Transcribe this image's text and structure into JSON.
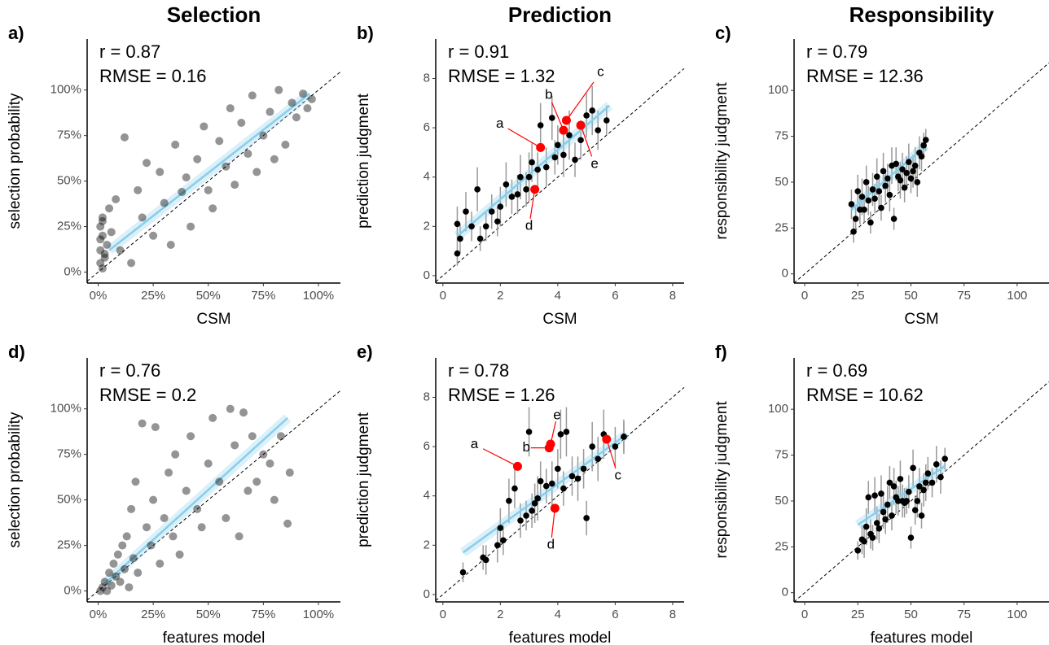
{
  "chart_data": [
    {
      "type": "scatter",
      "title": "Selection",
      "panel_label": "a)",
      "annotations": [
        "r = 0.87",
        "RMSE = 0.16"
      ],
      "xlabel": "CSM",
      "ylabel": "selection probability",
      "xlim": [
        -0.05,
        1.1
      ],
      "ylim": [
        -0.06,
        1.28
      ],
      "xticks": [
        {
          "value": 0,
          "label": "0%"
        },
        {
          "value": 0.25,
          "label": "25%"
        },
        {
          "value": 0.5,
          "label": "50%"
        },
        {
          "value": 0.75,
          "label": "75%"
        },
        {
          "value": 1,
          "label": "100%"
        }
      ],
      "yticks": [
        {
          "value": 0,
          "label": "0%"
        },
        {
          "value": 0.25,
          "label": "25%"
        },
        {
          "value": 0.5,
          "label": "50%"
        },
        {
          "value": 0.75,
          "label": "75%"
        },
        {
          "value": 1,
          "label": "100%"
        }
      ],
      "color": "#000000",
      "x": [
        0.01,
        0.01,
        0.02,
        0.02,
        0.03,
        0.01,
        0.04,
        0.02,
        0.05,
        0.03,
        0.01,
        0.06,
        0.02,
        0.08,
        0.1,
        0.12,
        0.15,
        0.18,
        0.2,
        0.22,
        0.25,
        0.28,
        0.3,
        0.33,
        0.35,
        0.38,
        0.4,
        0.42,
        0.45,
        0.48,
        0.5,
        0.52,
        0.55,
        0.58,
        0.6,
        0.62,
        0.65,
        0.68,
        0.7,
        0.72,
        0.75,
        0.78,
        0.8,
        0.82,
        0.85,
        0.88,
        0.9,
        0.93,
        0.95,
        0.97
      ],
      "y": [
        0.05,
        0.12,
        0.2,
        0.3,
        0.08,
        0.25,
        0.15,
        0.02,
        0.35,
        0.1,
        0.18,
        0.22,
        0.28,
        0.4,
        0.12,
        0.74,
        0.05,
        0.45,
        0.3,
        0.6,
        0.2,
        0.55,
        0.38,
        0.15,
        0.7,
        0.44,
        0.52,
        0.25,
        0.62,
        0.8,
        0.45,
        0.35,
        0.72,
        0.58,
        0.9,
        0.48,
        0.82,
        0.65,
        0.97,
        0.55,
        0.75,
        0.88,
        0.62,
        1.0,
        0.7,
        0.93,
        0.85,
        0.98,
        0.9,
        0.95
      ],
      "trend": {
        "color": "#87ceeb",
        "x": [
          0.05,
          0.96
        ],
        "y": [
          0.12,
          0.98
        ]
      }
    },
    {
      "type": "scatter",
      "title": "Prediction",
      "panel_label": "b)",
      "annotations": [
        "r = 0.91",
        "RMSE = 1.32"
      ],
      "xlabel": "CSM",
      "ylabel": "prediction judgment",
      "xlim": [
        -0.25,
        8.4
      ],
      "ylim": [
        -0.3,
        9.6
      ],
      "xticks": [
        0,
        2,
        4,
        6,
        8
      ],
      "yticks": [
        0,
        2,
        4,
        6,
        8
      ],
      "color": "#000000",
      "x": [
        0.5,
        0.5,
        0.6,
        0.8,
        1.0,
        1.2,
        1.3,
        1.5,
        1.7,
        1.9,
        2.0,
        2.2,
        2.4,
        2.6,
        2.7,
        2.9,
        3.0,
        3.1,
        3.3,
        3.4,
        3.6,
        3.8,
        3.9,
        4.0,
        4.2,
        4.4,
        4.6,
        4.8,
        5.0,
        5.2,
        5.4,
        5.7
      ],
      "y": [
        0.9,
        2.1,
        1.5,
        2.6,
        2.0,
        3.5,
        1.5,
        2.0,
        2.6,
        2.2,
        2.8,
        3.7,
        3.2,
        3.3,
        4.0,
        3.5,
        4.0,
        4.6,
        4.3,
        6.1,
        4.4,
        6.4,
        4.8,
        5.3,
        4.9,
        5.7,
        4.7,
        5.5,
        6.5,
        6.7,
        5.9,
        6.3
      ],
      "errors": [
        0.5,
        0.7,
        0.6,
        0.8,
        0.6,
        0.9,
        0.5,
        0.6,
        0.7,
        0.6,
        0.8,
        0.9,
        0.7,
        0.8,
        0.9,
        0.7,
        1.0,
        0.8,
        0.7,
        0.9,
        0.8,
        0.9,
        0.7,
        0.8,
        0.9,
        1.0,
        0.7,
        0.8,
        0.9,
        1.0,
        0.8,
        0.6
      ],
      "highlights": [
        {
          "label": "a",
          "x": 3.4,
          "y": 5.2
        },
        {
          "label": "b",
          "x": 4.2,
          "y": 5.9
        },
        {
          "label": "c",
          "x": 4.3,
          "y": 6.3
        },
        {
          "label": "d",
          "x": 3.2,
          "y": 3.5
        },
        {
          "label": "e",
          "x": 4.8,
          "y": 6.1
        }
      ],
      "highlight_color": "#ff0000",
      "trend": {
        "color": "#87ceeb",
        "x": [
          0.5,
          5.8
        ],
        "y": [
          1.6,
          6.9
        ]
      }
    },
    {
      "type": "scatter",
      "title": "Responsibility",
      "panel_label": "c)",
      "annotations": [
        "r = 0.79",
        "RMSE = 12.36"
      ],
      "xlabel": "CSM",
      "ylabel": "responsibility judgment",
      "xlim": [
        -5,
        115
      ],
      "ylim": [
        -5,
        128
      ],
      "xticks": [
        0,
        25,
        50,
        75,
        100
      ],
      "yticks": [
        0,
        25,
        50,
        75,
        100
      ],
      "color": "#000000",
      "x": [
        22,
        23,
        24,
        25,
        26,
        27,
        28,
        29,
        30,
        31,
        32,
        33,
        34,
        35,
        36,
        37,
        38,
        39,
        40,
        41,
        42,
        43,
        44,
        45,
        46,
        47,
        48,
        49,
        50,
        51,
        52,
        53,
        54,
        55,
        56,
        57
      ],
      "y": [
        38,
        23,
        30,
        45,
        35,
        42,
        35,
        50,
        40,
        28,
        46,
        41,
        53,
        45,
        36,
        56,
        48,
        52,
        43,
        59,
        30,
        60,
        53,
        51,
        57,
        47,
        55,
        61,
        52,
        56,
        59,
        50,
        66,
        64,
        70,
        73
      ],
      "errors": [
        8,
        6,
        7,
        9,
        8,
        10,
        7,
        9,
        8,
        6,
        9,
        8,
        10,
        9,
        7,
        10,
        9,
        8,
        9,
        10,
        6,
        9,
        8,
        10,
        9,
        8,
        9,
        10,
        8,
        9,
        10,
        8,
        9,
        8,
        7,
        6
      ],
      "trend": {
        "color": "#87ceeb",
        "x": [
          22,
          57
        ],
        "y": [
          35,
          70
        ]
      }
    },
    {
      "type": "scatter",
      "panel_label": "d)",
      "annotations": [
        "r = 0.76",
        "RMSE = 0.2"
      ],
      "xlabel": "features model",
      "ylabel": "selection probability",
      "xlim": [
        -0.05,
        1.1
      ],
      "ylim": [
        -0.06,
        1.28
      ],
      "xticks": [
        {
          "value": 0,
          "label": "0%"
        },
        {
          "value": 0.25,
          "label": "25%"
        },
        {
          "value": 0.5,
          "label": "50%"
        },
        {
          "value": 0.75,
          "label": "75%"
        },
        {
          "value": 1,
          "label": "100%"
        }
      ],
      "yticks": [
        {
          "value": 0,
          "label": "0%"
        },
        {
          "value": 0.25,
          "label": "25%"
        },
        {
          "value": 0.5,
          "label": "50%"
        },
        {
          "value": 0.75,
          "label": "75%"
        },
        {
          "value": 1,
          "label": "100%"
        }
      ],
      "color": "#000000",
      "x": [
        0.01,
        0.02,
        0.03,
        0.04,
        0.05,
        0.06,
        0.07,
        0.08,
        0.09,
        0.1,
        0.11,
        0.12,
        0.13,
        0.14,
        0.15,
        0.16,
        0.17,
        0.18,
        0.2,
        0.22,
        0.24,
        0.25,
        0.26,
        0.28,
        0.3,
        0.32,
        0.34,
        0.35,
        0.37,
        0.4,
        0.42,
        0.45,
        0.47,
        0.5,
        0.52,
        0.55,
        0.58,
        0.6,
        0.62,
        0.64,
        0.66,
        0.68,
        0.7,
        0.72,
        0.75,
        0.78,
        0.8,
        0.83,
        0.86,
        0.87
      ],
      "y": [
        0.0,
        0.02,
        0.05,
        0.0,
        0.1,
        0.03,
        0.15,
        0.08,
        0.2,
        0.05,
        0.25,
        0.12,
        0.3,
        0.02,
        0.45,
        0.18,
        0.6,
        0.1,
        0.92,
        0.35,
        0.25,
        0.5,
        0.9,
        0.15,
        0.4,
        0.65,
        0.3,
        0.75,
        0.2,
        0.55,
        0.85,
        0.45,
        0.35,
        0.7,
        0.95,
        0.6,
        0.4,
        1.0,
        0.8,
        0.3,
        0.98,
        0.55,
        0.85,
        0.6,
        0.75,
        0.7,
        0.5,
        0.85,
        0.37,
        0.65
      ],
      "trend": {
        "color": "#87ceeb",
        "x": [
          0.03,
          0.86
        ],
        "y": [
          0.04,
          0.95
        ]
      }
    },
    {
      "type": "scatter",
      "panel_label": "e)",
      "annotations": [
        "r = 0.78",
        "RMSE = 1.26"
      ],
      "xlabel": "features model",
      "ylabel": "prediction judgment",
      "xlim": [
        -0.25,
        8.4
      ],
      "ylim": [
        -0.3,
        9.6
      ],
      "xticks": [
        0,
        2,
        4,
        6,
        8
      ],
      "yticks": [
        0,
        2,
        4,
        6,
        8
      ],
      "color": "#000000",
      "x": [
        0.7,
        1.4,
        1.5,
        1.9,
        2.0,
        2.1,
        2.3,
        2.5,
        2.7,
        2.9,
        3.0,
        3.1,
        3.2,
        3.3,
        3.4,
        3.6,
        3.8,
        4.0,
        4.1,
        4.2,
        4.3,
        4.5,
        4.7,
        4.9,
        5.0,
        5.2,
        5.4,
        5.6,
        6.0,
        6.3,
        6.3
      ],
      "y": [
        0.9,
        1.5,
        1.4,
        2.0,
        2.7,
        2.2,
        3.8,
        4.3,
        3.0,
        3.2,
        6.6,
        3.4,
        3.7,
        3.9,
        4.6,
        4.4,
        4.5,
        5.1,
        6.5,
        4.3,
        6.6,
        4.8,
        4.7,
        5.1,
        3.1,
        6.0,
        5.5,
        6.5,
        6.0,
        6.4,
        6.4
      ],
      "errors": [
        0.4,
        0.5,
        0.6,
        0.7,
        0.8,
        0.6,
        0.9,
        0.8,
        0.7,
        0.6,
        1.0,
        0.7,
        0.8,
        0.9,
        0.8,
        0.7,
        0.9,
        0.8,
        1.0,
        0.7,
        1.0,
        0.8,
        0.9,
        0.8,
        0.7,
        1.0,
        0.9,
        1.0,
        0.8,
        0.7,
        0.6
      ],
      "highlights": [
        {
          "label": "a",
          "x": 2.6,
          "y": 5.2
        },
        {
          "label": "b",
          "x": 3.7,
          "y": 5.95
        },
        {
          "label": "c",
          "x": 5.7,
          "y": 6.3
        },
        {
          "label": "d",
          "x": 3.9,
          "y": 3.5
        },
        {
          "label": "e",
          "x": 3.75,
          "y": 6.1
        }
      ],
      "highlight_color": "#ff0000",
      "trend": {
        "color": "#87ceeb",
        "x": [
          0.7,
          6.4
        ],
        "y": [
          1.7,
          6.5
        ]
      }
    },
    {
      "type": "scatter",
      "panel_label": "f)",
      "annotations": [
        "r = 0.69",
        "RMSE = 10.62"
      ],
      "xlabel": "features model",
      "ylabel": "responsibility judgment",
      "xlim": [
        -5,
        115
      ],
      "ylim": [
        -5,
        128
      ],
      "xticks": [
        0,
        25,
        50,
        75,
        100
      ],
      "yticks": [
        0,
        25,
        50,
        75,
        100
      ],
      "color": "#000000",
      "x": [
        25,
        27,
        28,
        29,
        30,
        31,
        32,
        33,
        34,
        35,
        36,
        37,
        38,
        39,
        40,
        41,
        42,
        43,
        44,
        45,
        46,
        47,
        48,
        49,
        50,
        51,
        52,
        53,
        54,
        55,
        56,
        57,
        58,
        60,
        62,
        64,
        66
      ],
      "y": [
        23,
        29,
        28,
        36,
        52,
        32,
        30,
        53,
        38,
        35,
        54,
        44,
        40,
        48,
        60,
        42,
        58,
        52,
        50,
        62,
        50,
        49,
        50,
        55,
        30,
        68,
        45,
        50,
        58,
        42,
        56,
        60,
        65,
        60,
        70,
        63,
        73
      ],
      "errors": [
        5,
        8,
        9,
        10,
        9,
        8,
        7,
        10,
        9,
        8,
        10,
        9,
        8,
        10,
        9,
        8,
        10,
        9,
        8,
        10,
        9,
        8,
        7,
        9,
        6,
        10,
        8,
        9,
        10,
        7,
        9,
        10,
        9,
        8,
        10,
        9,
        6
      ],
      "trend": {
        "color": "#87ceeb",
        "x": [
          25,
          66
        ],
        "y": [
          37,
          69
        ]
      }
    }
  ]
}
